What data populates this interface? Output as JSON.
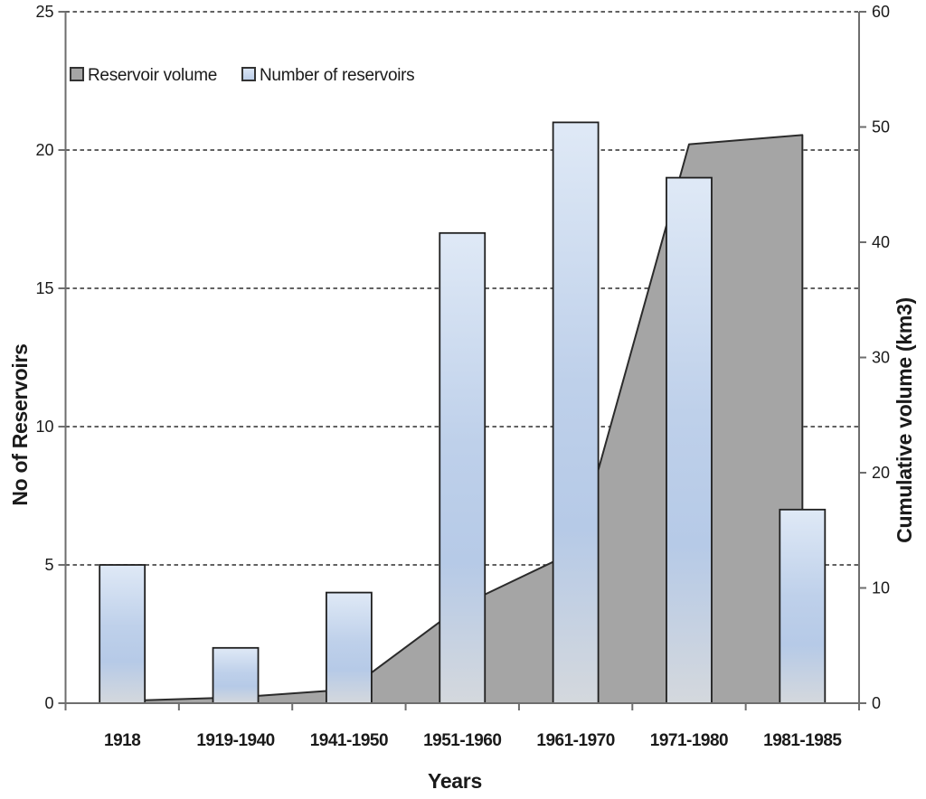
{
  "chart_data": {
    "type": "combo",
    "categories": [
      "1918",
      "1919-1940",
      "1941-1950",
      "1951-1960",
      "1961-1970",
      "1971-1980",
      "1981-1985"
    ],
    "series": [
      {
        "name": "Reservoir volume",
        "type": "area",
        "axis": "right",
        "unit": "km3",
        "values": [
          0.2,
          0.5,
          1.2,
          8.5,
          13.2,
          48.5,
          49.3
        ]
      },
      {
        "name": "Number of reservoirs",
        "type": "bar",
        "axis": "left",
        "unit": "reservoirs",
        "values": [
          5,
          2,
          4,
          17,
          21,
          19,
          7
        ]
      }
    ],
    "left_axis": {
      "label": "No of Reservoirs",
      "min": 0,
      "max": 25,
      "ticks": [
        0,
        5,
        10,
        15,
        20,
        25
      ]
    },
    "right_axis": {
      "label": "Cumulative volume (km3)",
      "min": 0,
      "max": 60,
      "ticks": [
        0,
        10,
        20,
        30,
        40,
        50,
        60
      ]
    },
    "x_axis": {
      "label": "Years"
    },
    "legend": {
      "position": "top-left-inside",
      "entries": [
        "Reservoir volume",
        "Number of reservoirs"
      ]
    },
    "grid": {
      "horizontal": "dashed",
      "at_left_ticks": true
    },
    "colors": {
      "bar_fill_top": "#dfe9f6",
      "bar_fill_mid": "#b6cae7",
      "bar_fill_bottom": "#d4d8dd",
      "bar_stroke": "#1f1f1f",
      "area_fill": "#a5a5a5",
      "area_stroke": "#2b2b2b",
      "axis_line": "#6e6e6e",
      "grid_line": "#2e2e2e",
      "text": "#1a1a1a",
      "background": "#ffffff"
    }
  }
}
